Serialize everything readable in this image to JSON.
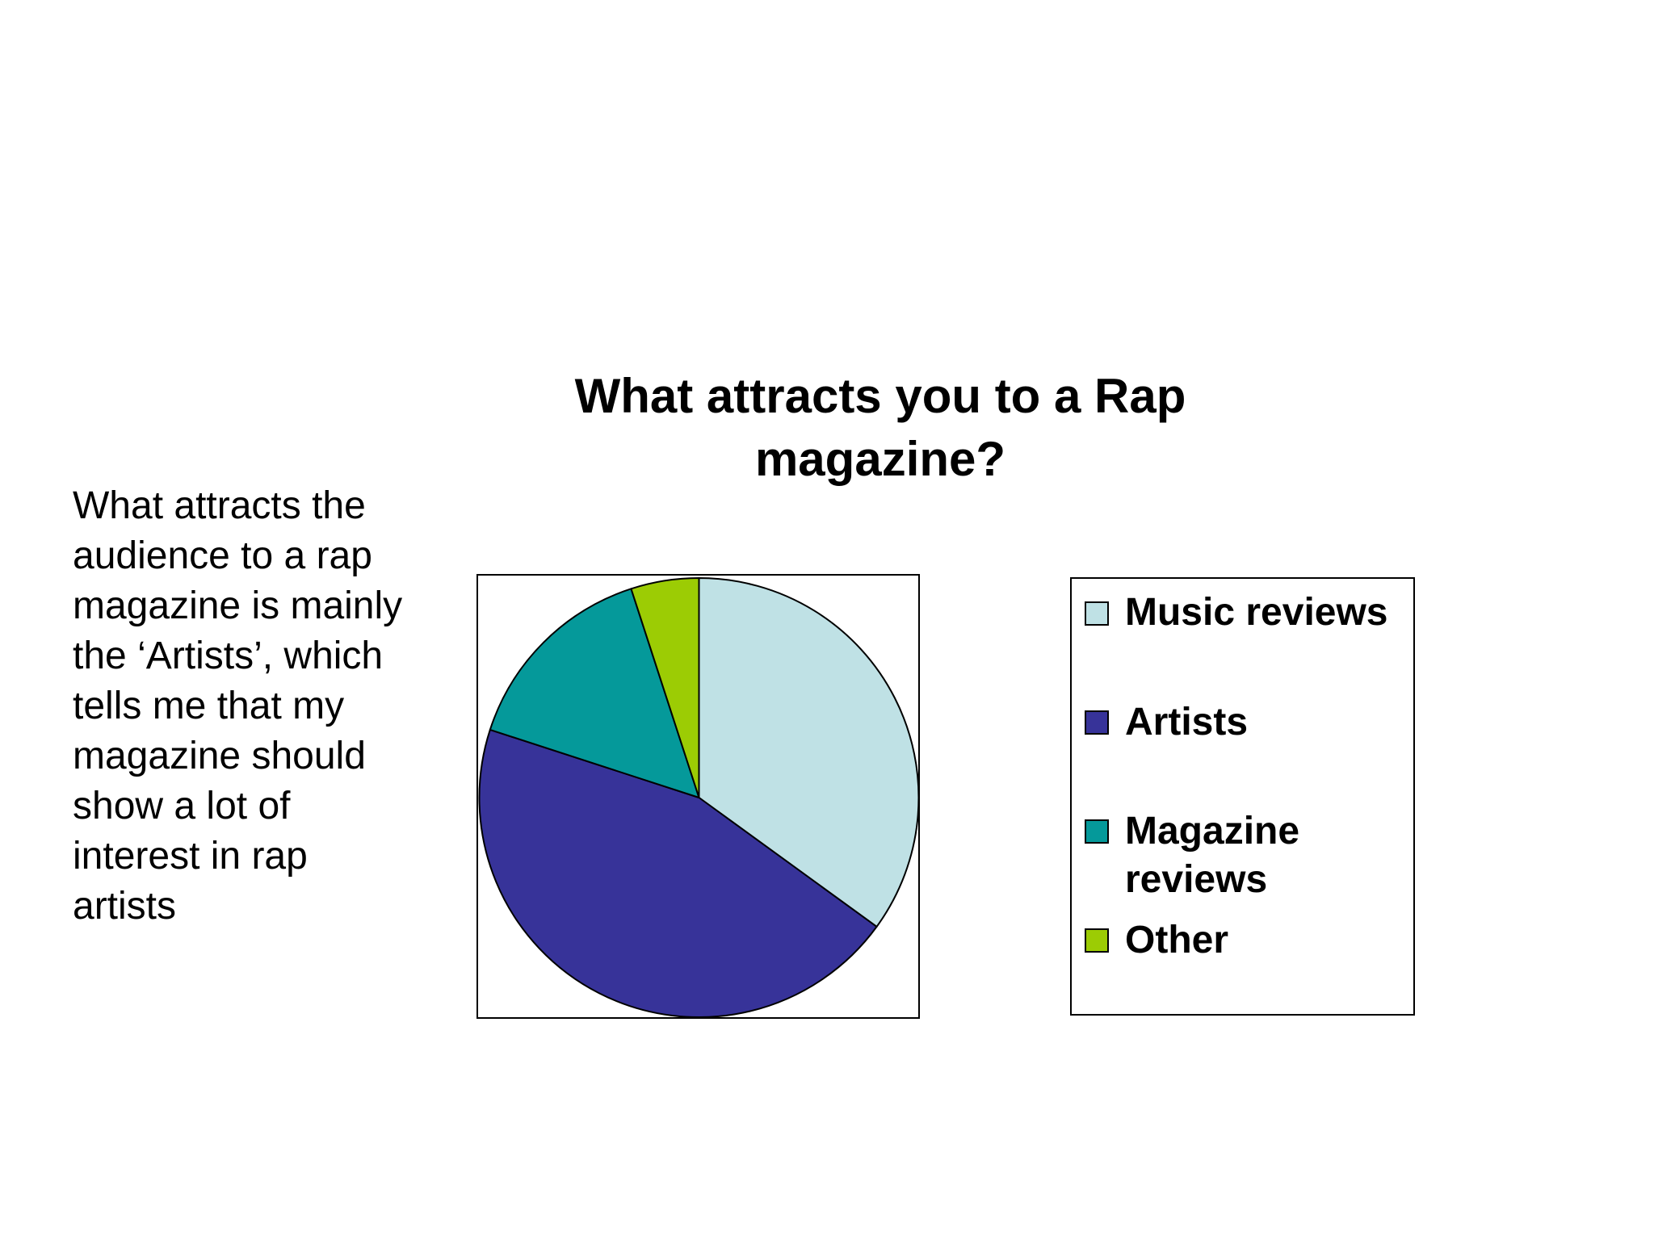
{
  "body_text": "What attracts the\naudience to a rap\nmagazine is mainly\nthe ‘Artists’, which\ntells me that my\nmagazine should\nshow a lot of\ninterest in rap\nartists",
  "chart_data": {
    "type": "pie",
    "title": "What attracts you to a Rap magazine?",
    "categories": [
      "Music reviews",
      "Artists",
      "Magazine reviews",
      "Other"
    ],
    "values": [
      35,
      45,
      15,
      5
    ],
    "colors": [
      "#BFE1E5",
      "#373399",
      "#05999A",
      "#9CCC04"
    ],
    "legend_position": "right",
    "start_angle": "12 o'clock",
    "direction": "clockwise"
  },
  "legend": {
    "items": [
      {
        "label": "Music reviews",
        "color": "#BFE1E5"
      },
      {
        "label": "Artists",
        "color": "#373399"
      },
      {
        "label": "Magazine\nreviews",
        "color": "#05999A"
      },
      {
        "label": "Other",
        "color": "#9CCC04"
      }
    ]
  }
}
